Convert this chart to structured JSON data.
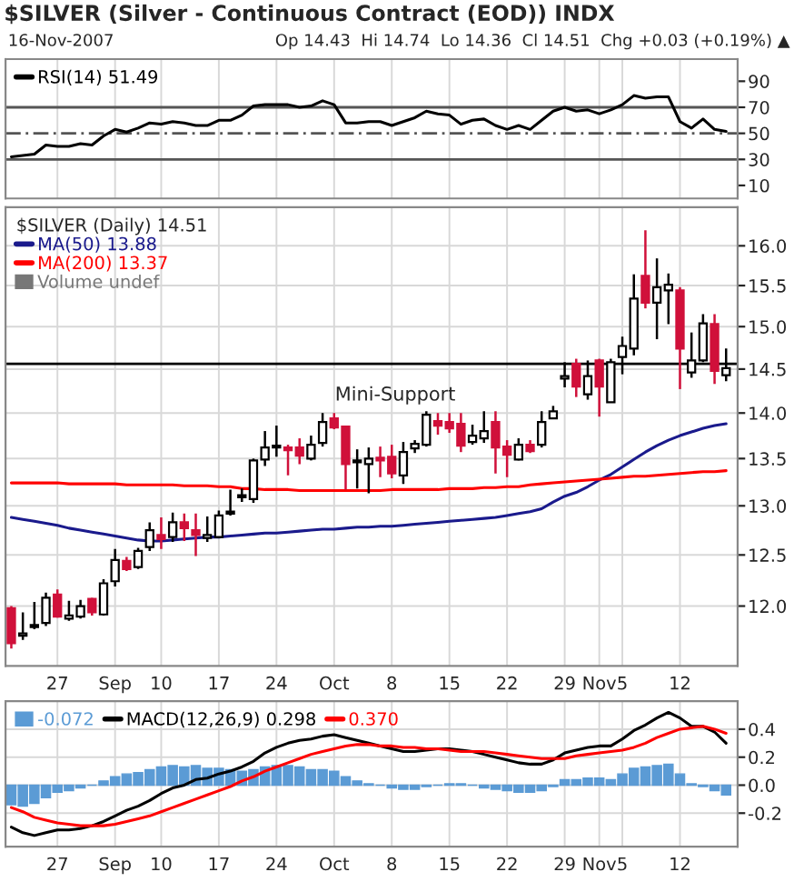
{
  "chart_data": [
    {
      "type": "line",
      "title": "$SILVER (Silver - Continuous Contract (EOD)) INDX",
      "subtitle": "16-Nov-2007",
      "annotations": [
        "Op 14.43  Hi 14.74  Lo 14.36  Cl 14.51  Chg +0.03 (+0.19%) ▲"
      ],
      "categories": [
        null,
        null,
        null,
        null,
        null,
        null,
        null,
        null,
        null,
        null,
        null,
        null,
        null,
        null,
        null,
        null,
        null,
        null,
        null,
        null,
        null,
        null,
        null,
        null,
        null,
        null,
        null,
        null,
        null,
        null,
        null,
        null,
        null,
        null,
        null,
        null,
        null,
        null,
        null,
        null,
        null,
        null,
        null,
        null,
        null,
        null,
        null,
        null,
        null,
        null,
        null,
        null,
        null,
        null,
        null,
        null,
        null,
        null,
        null,
        null,
        null,
        null,
        null
      ],
      "series": [
        {
          "name": "RSI(14) 51.49",
          "color": "#000000",
          "values": [
            32,
            33,
            34,
            41,
            40,
            40,
            42,
            41,
            48,
            53,
            51,
            54,
            58,
            57,
            59,
            58,
            56,
            56,
            60,
            60,
            64,
            71,
            72,
            72,
            72,
            70,
            71,
            75,
            72,
            58,
            58,
            59,
            59,
            56,
            59,
            62,
            67,
            65,
            64,
            57,
            60,
            61,
            56,
            53,
            56,
            53,
            60,
            67,
            70,
            67,
            68,
            65,
            68,
            72,
            79,
            77,
            78,
            78,
            59,
            54,
            61,
            53,
            51.5
          ]
        }
      ],
      "ylim": [
        0,
        107
      ],
      "yticks": [
        10,
        30,
        50,
        70,
        90
      ],
      "tick_labels": "y",
      "grid": "x",
      "legend": "top left",
      "ref_lines": [
        {
          "axis": "y",
          "value": 70,
          "color": "#555555",
          "line_style": "solid"
        },
        {
          "axis": "y",
          "value": 30,
          "color": "#555555",
          "line_style": "solid"
        },
        {
          "axis": "y",
          "value": 50,
          "color": "#555555",
          "line_style": "dashed"
        }
      ]
    },
    {
      "type": "candlestick",
      "annotations": [
        "Volume undef",
        "Mini-Support"
      ],
      "legend_title": "$SILVER (Daily) 14.51",
      "categories": [
        null,
        null,
        null,
        null,
        "27",
        null,
        null,
        null,
        null,
        "Sep",
        null,
        null,
        null,
        "10",
        null,
        null,
        null,
        null,
        "17",
        null,
        null,
        null,
        null,
        "24",
        null,
        null,
        null,
        null,
        "Oct",
        null,
        null,
        null,
        null,
        "8",
        null,
        null,
        null,
        null,
        "15",
        null,
        null,
        null,
        null,
        "22",
        null,
        null,
        null,
        null,
        "29",
        null,
        null,
        "Nov",
        null,
        "5",
        null,
        null,
        null,
        null,
        "12",
        null,
        null,
        null,
        null
      ],
      "ohlc": [
        [
          11.98,
          12.0,
          11.6,
          11.65
        ],
        [
          11.72,
          11.94,
          11.68,
          11.74
        ],
        [
          11.8,
          12.04,
          11.78,
          11.82
        ],
        [
          11.84,
          12.13,
          11.81,
          12.08
        ],
        [
          12.11,
          12.16,
          11.89,
          11.9
        ],
        [
          11.88,
          12.05,
          11.86,
          11.91
        ],
        [
          11.9,
          12.06,
          11.88,
          12.0
        ],
        [
          12.07,
          12.08,
          11.91,
          11.94
        ],
        [
          11.92,
          12.26,
          11.91,
          12.22
        ],
        [
          12.24,
          12.56,
          12.19,
          12.45
        ],
        [
          12.44,
          12.48,
          12.34,
          12.36
        ],
        [
          12.38,
          12.57,
          12.36,
          12.54
        ],
        [
          12.58,
          12.83,
          12.54,
          12.75
        ],
        [
          12.7,
          12.88,
          12.56,
          12.66
        ],
        [
          12.68,
          12.93,
          12.63,
          12.83
        ],
        [
          12.83,
          12.92,
          12.64,
          12.77
        ],
        [
          12.75,
          12.92,
          12.49,
          12.7
        ],
        [
          12.67,
          12.89,
          12.63,
          12.7
        ],
        [
          12.68,
          12.95,
          12.67,
          12.9
        ],
        [
          12.92,
          13.17,
          12.9,
          12.94
        ],
        [
          13.09,
          13.18,
          13.04,
          13.11
        ],
        [
          13.07,
          13.5,
          13.03,
          13.48
        ],
        [
          13.49,
          13.8,
          13.42,
          13.62
        ],
        [
          13.62,
          13.86,
          13.52,
          13.64
        ],
        [
          13.62,
          13.65,
          13.32,
          13.59
        ],
        [
          13.62,
          13.72,
          13.44,
          13.53
        ],
        [
          13.5,
          13.75,
          13.48,
          13.65
        ],
        [
          13.67,
          14.0,
          13.63,
          13.9
        ],
        [
          13.94,
          14.0,
          13.82,
          13.84
        ],
        [
          13.85,
          13.86,
          13.17,
          13.44
        ],
        [
          13.46,
          13.6,
          13.18,
          13.48
        ],
        [
          13.44,
          13.62,
          13.13,
          13.5
        ],
        [
          13.51,
          13.63,
          13.3,
          13.48
        ],
        [
          13.52,
          13.65,
          13.29,
          13.34
        ],
        [
          13.32,
          13.68,
          13.23,
          13.57
        ],
        [
          13.61,
          13.7,
          13.56,
          13.66
        ],
        [
          13.65,
          14.02,
          13.63,
          13.98
        ],
        [
          13.91,
          14.0,
          13.76,
          13.86
        ],
        [
          13.9,
          14.0,
          13.78,
          13.83
        ],
        [
          13.88,
          14.0,
          13.57,
          13.64
        ],
        [
          13.68,
          13.87,
          13.65,
          13.75
        ],
        [
          13.72,
          14.02,
          13.67,
          13.8
        ],
        [
          13.9,
          14.02,
          13.34,
          13.62
        ],
        [
          13.63,
          13.7,
          13.3,
          13.54
        ],
        [
          13.49,
          13.72,
          13.48,
          13.65
        ],
        [
          13.65,
          13.7,
          13.56,
          13.58
        ],
        [
          13.65,
          14.02,
          13.62,
          13.9
        ],
        [
          13.94,
          14.08,
          13.94,
          14.02
        ],
        [
          14.39,
          14.58,
          14.29,
          14.42
        ],
        [
          14.56,
          14.62,
          14.18,
          14.3
        ],
        [
          14.21,
          14.6,
          14.15,
          14.42
        ],
        [
          14.6,
          14.62,
          13.96,
          14.3
        ],
        [
          14.12,
          14.62,
          14.12,
          14.58
        ],
        [
          14.64,
          14.88,
          14.44,
          14.77
        ],
        [
          14.74,
          15.64,
          14.66,
          15.34
        ],
        [
          15.62,
          16.2,
          15.22,
          15.29
        ],
        [
          15.29,
          15.84,
          14.85,
          15.48
        ],
        [
          15.44,
          15.65,
          15.03,
          15.51
        ],
        [
          15.44,
          15.48,
          14.27,
          14.74
        ],
        [
          14.46,
          14.93,
          14.4,
          14.6
        ],
        [
          14.6,
          15.15,
          14.58,
          15.04
        ],
        [
          15.03,
          15.15,
          14.33,
          14.48
        ],
        [
          14.43,
          14.74,
          14.36,
          14.51
        ]
      ],
      "colors": [
        "#d0103a",
        "#ffffff",
        "#ffffff",
        "#ffffff",
        "#d0103a",
        "#ffffff",
        "#ffffff",
        "#d0103a",
        "#ffffff",
        "#ffffff",
        "#d0103a",
        "#ffffff",
        "#ffffff",
        "#d0103a",
        "#ffffff",
        "#d0103a",
        "#d0103a",
        "#ffffff",
        "#ffffff",
        "#ffffff",
        "#ffffff",
        "#ffffff",
        "#ffffff",
        "#ffffff",
        "#d0103a",
        "#d0103a",
        "#ffffff",
        "#ffffff",
        "#d0103a",
        "#d0103a",
        "#ffffff",
        "#ffffff",
        "#d0103a",
        "#d0103a",
        "#ffffff",
        "#ffffff",
        "#ffffff",
        "#d0103a",
        "#d0103a",
        "#d0103a",
        "#ffffff",
        "#ffffff",
        "#d0103a",
        "#d0103a",
        "#ffffff",
        "#d0103a",
        "#ffffff",
        "#ffffff",
        "#ffffff",
        "#d0103a",
        "#ffffff",
        "#d0103a",
        "#ffffff",
        "#ffffff",
        "#ffffff",
        "#d0103a",
        "#ffffff",
        "#ffffff",
        "#d0103a",
        "#ffffff",
        "#ffffff",
        "#d0103a",
        "#ffffff"
      ],
      "series": [
        {
          "name": "MA(50) 13.88",
          "type": "line",
          "color": "#1a1a8c",
          "values": [
            12.88,
            12.86,
            12.84,
            12.82,
            12.8,
            12.77,
            12.75,
            12.73,
            12.71,
            12.69,
            12.67,
            12.65,
            12.64,
            12.64,
            12.65,
            12.66,
            12.67,
            12.68,
            12.68,
            12.69,
            12.7,
            12.71,
            12.72,
            12.72,
            12.73,
            12.74,
            12.75,
            12.76,
            12.76,
            12.77,
            12.78,
            12.78,
            12.79,
            12.79,
            12.8,
            12.81,
            12.82,
            12.83,
            12.84,
            12.85,
            12.86,
            12.87,
            12.88,
            12.9,
            12.92,
            12.94,
            12.97,
            13.04,
            13.1,
            13.14,
            13.2,
            13.27,
            13.33,
            13.41,
            13.49,
            13.57,
            13.64,
            13.7,
            13.75,
            13.79,
            13.83,
            13.86,
            13.88
          ]
        },
        {
          "name": "MA(200) 13.37",
          "type": "line",
          "color": "#ff0000",
          "values": [
            13.24,
            13.24,
            13.24,
            13.24,
            13.24,
            13.23,
            13.23,
            13.23,
            13.23,
            13.23,
            13.22,
            13.22,
            13.22,
            13.22,
            13.22,
            13.21,
            13.21,
            13.21,
            13.2,
            13.2,
            13.18,
            13.18,
            13.17,
            13.17,
            13.17,
            13.16,
            13.16,
            13.16,
            13.16,
            13.16,
            13.16,
            13.16,
            13.16,
            13.17,
            13.17,
            13.17,
            13.17,
            13.17,
            13.18,
            13.18,
            13.18,
            13.19,
            13.19,
            13.2,
            13.2,
            13.22,
            13.23,
            13.24,
            13.25,
            13.26,
            13.27,
            13.28,
            13.29,
            13.3,
            13.31,
            13.31,
            13.32,
            13.33,
            13.34,
            13.35,
            13.36,
            13.36,
            13.37
          ]
        }
      ],
      "log": true,
      "ylim": [
        11.44,
        16.5
      ],
      "yticks": [
        {
          "value": 12,
          "label": "12.0"
        },
        12.5,
        {
          "value": 13,
          "label": "13.0"
        },
        13.5,
        {
          "value": 14,
          "label": "14.0"
        },
        14.5,
        {
          "value": 15,
          "label": "15.0"
        },
        15.5,
        {
          "value": 16,
          "label": "16.0"
        }
      ],
      "grid": true,
      "legend": "top left",
      "ref_lines": [
        {
          "axis": "y",
          "value": 14.56,
          "color": "#000000",
          "line_style": "solid"
        }
      ]
    },
    {
      "type": "line",
      "categories": [
        null,
        null,
        null,
        null,
        "27",
        null,
        null,
        null,
        null,
        "Sep",
        null,
        null,
        null,
        "10",
        null,
        null,
        null,
        null,
        "17",
        null,
        null,
        null,
        null,
        "24",
        null,
        null,
        null,
        null,
        "Oct",
        null,
        null,
        null,
        null,
        "8",
        null,
        null,
        null,
        null,
        "15",
        null,
        null,
        null,
        null,
        "22",
        null,
        null,
        null,
        null,
        "29",
        null,
        null,
        "Nov",
        null,
        "5",
        null,
        null,
        null,
        null,
        "12",
        null,
        null,
        null,
        null
      ],
      "series": [
        {
          "name": "-0.072",
          "type": "bar",
          "color": "#5b9bd5",
          "values": [
            -0.14,
            -0.15,
            -0.13,
            -0.09,
            -0.05,
            -0.04,
            -0.02,
            0.0,
            0.03,
            0.06,
            0.08,
            0.09,
            0.11,
            0.13,
            0.14,
            0.13,
            0.14,
            0.12,
            0.12,
            0.11,
            0.1,
            0.11,
            0.13,
            0.14,
            0.14,
            0.13,
            0.11,
            0.11,
            0.1,
            0.06,
            0.03,
            0.01,
            0.0,
            -0.02,
            -0.03,
            -0.03,
            -0.01,
            0.0,
            0.01,
            0.01,
            0.0,
            -0.02,
            -0.03,
            -0.04,
            -0.05,
            -0.05,
            -0.04,
            -0.01,
            0.04,
            0.04,
            0.05,
            0.05,
            0.04,
            0.08,
            0.12,
            0.13,
            0.14,
            0.15,
            0.08,
            0.01,
            -0.01,
            -0.04,
            -0.07
          ]
        },
        {
          "name": "MACD(12,26,9) 0.298",
          "type": "line",
          "color": "#000000",
          "values": [
            -0.3,
            -0.34,
            -0.36,
            -0.34,
            -0.32,
            -0.32,
            -0.31,
            -0.29,
            -0.26,
            -0.22,
            -0.18,
            -0.15,
            -0.11,
            -0.06,
            -0.02,
            0.0,
            0.04,
            0.05,
            0.08,
            0.1,
            0.13,
            0.17,
            0.23,
            0.27,
            0.3,
            0.32,
            0.33,
            0.35,
            0.36,
            0.34,
            0.32,
            0.3,
            0.28,
            0.26,
            0.24,
            0.24,
            0.25,
            0.26,
            0.26,
            0.25,
            0.24,
            0.22,
            0.2,
            0.18,
            0.16,
            0.15,
            0.15,
            0.18,
            0.23,
            0.25,
            0.27,
            0.28,
            0.28,
            0.33,
            0.39,
            0.43,
            0.48,
            0.52,
            0.48,
            0.42,
            0.42,
            0.38,
            0.3
          ]
        },
        {
          "name": "0.370",
          "type": "line",
          "color": "#ff0000",
          "values": [
            -0.16,
            -0.19,
            -0.23,
            -0.25,
            -0.27,
            -0.28,
            -0.29,
            -0.29,
            -0.29,
            -0.28,
            -0.26,
            -0.24,
            -0.22,
            -0.19,
            -0.16,
            -0.13,
            -0.1,
            -0.07,
            -0.04,
            -0.01,
            0.03,
            0.06,
            0.1,
            0.13,
            0.16,
            0.19,
            0.22,
            0.24,
            0.26,
            0.28,
            0.29,
            0.29,
            0.28,
            0.28,
            0.27,
            0.27,
            0.26,
            0.26,
            0.25,
            0.24,
            0.24,
            0.24,
            0.23,
            0.22,
            0.21,
            0.2,
            0.19,
            0.19,
            0.19,
            0.21,
            0.22,
            0.23,
            0.24,
            0.25,
            0.27,
            0.3,
            0.34,
            0.37,
            0.4,
            0.41,
            0.42,
            0.4,
            0.37
          ]
        }
      ],
      "ylim": [
        -0.44,
        0.6
      ],
      "yticks": [
        {
          "value": -0.2,
          "label": "-0.2"
        },
        {
          "value": 0,
          "label": "0.0"
        },
        0.2,
        0.4
      ],
      "grid": true,
      "legend": "top left"
    }
  ]
}
